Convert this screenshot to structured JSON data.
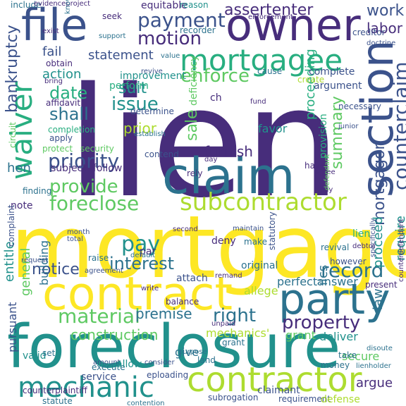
{
  "palette": {
    "dark_purple": "#472d7b",
    "indigo": "#3b528b",
    "blue": "#2c728e",
    "teal": "#21918c",
    "green_teal": "#28ae80",
    "green": "#5ec962",
    "lime": "#addc30",
    "yellow": "#fde725"
  },
  "words": [
    {
      "text": "lien",
      "color": "#472d7b"
    },
    {
      "text": "mortgage",
      "color": "#fde725"
    },
    {
      "text": "foreclosure",
      "color": "#21918c"
    },
    {
      "text": "contract",
      "color": "#fde725"
    },
    {
      "text": "claim",
      "color": "#2c728e"
    },
    {
      "text": "file",
      "color": "#3b528b"
    },
    {
      "text": "owner",
      "color": "#472d7b"
    },
    {
      "text": "mortgagee",
      "color": "#28ae80"
    },
    {
      "text": "section",
      "color": "#3b528b"
    },
    {
      "text": "party",
      "color": "#2c728e"
    },
    {
      "text": "contractor",
      "color": "#addc30"
    },
    {
      "text": "mechanic",
      "color": "#21918c"
    },
    {
      "text": "subcontractor",
      "color": "#addc30"
    },
    {
      "text": "waiver",
      "color": "#28ae80"
    },
    {
      "text": "foreclose",
      "color": "#5ec962"
    },
    {
      "text": "provide",
      "color": "#5ec962"
    },
    {
      "text": "payment",
      "color": "#3b528b"
    },
    {
      "text": "assertenter",
      "color": "#472d7b"
    },
    {
      "text": "counterclaim",
      "color": "#3b528b"
    },
    {
      "text": "record",
      "color": "#2c728e"
    },
    {
      "text": "priority",
      "color": "#3b528b"
    },
    {
      "text": "motion",
      "color": "#472d7b"
    },
    {
      "text": "enforce",
      "color": "#5ec962"
    },
    {
      "text": "bankruptcy",
      "color": "#3b528b"
    },
    {
      "text": "mortgagor",
      "color": "#3b528b"
    },
    {
      "text": "material",
      "color": "#5ec962"
    },
    {
      "text": "property",
      "color": "#472d7b"
    },
    {
      "text": "notice",
      "color": "#3b528b"
    },
    {
      "text": "interest",
      "color": "#2c728e"
    },
    {
      "text": "right",
      "color": "#2c728e"
    },
    {
      "text": "pay",
      "color": "#21918c"
    },
    {
      "text": "issue",
      "color": "#21918c"
    },
    {
      "text": "date",
      "color": "#28ae80"
    },
    {
      "text": "sale",
      "color": "#5ec962"
    },
    {
      "text": "summary",
      "color": "#5ec962"
    },
    {
      "text": "require",
      "color": "#21918c"
    },
    {
      "text": "proceed",
      "color": "#21918c"
    },
    {
      "text": "construction",
      "color": "#5ec962"
    },
    {
      "text": "premise",
      "color": "#2c728e"
    },
    {
      "text": "argue",
      "color": "#472d7b"
    },
    {
      "text": "entitle",
      "color": "#21918c"
    },
    {
      "text": "shall",
      "color": "#2c728e"
    },
    {
      "text": "suit",
      "color": "#21918c"
    },
    {
      "text": "work",
      "color": "#3b528b"
    },
    {
      "text": "labor",
      "color": "#472d7b"
    },
    {
      "text": "statement",
      "color": "#3b528b"
    },
    {
      "text": "fail",
      "color": "#3b528b"
    },
    {
      "text": "action",
      "color": "#21918c"
    },
    {
      "text": "prior",
      "color": "#addc30"
    },
    {
      "text": "furnish",
      "color": "#472d7b"
    },
    {
      "text": "note",
      "color": "#472d7b"
    },
    {
      "text": "hen",
      "color": "#2c728e"
    },
    {
      "text": "law",
      "color": "#2c728e"
    },
    {
      "text": "general",
      "color": "#5ec962"
    },
    {
      "text": "lien",
      "color": "#28ae80"
    },
    {
      "text": "proceeding",
      "color": "#28ae80"
    },
    {
      "text": "perfect",
      "color": "#2c728e"
    },
    {
      "text": "answer",
      "color": "#2c728e"
    },
    {
      "text": "original",
      "color": "#2c728e"
    },
    {
      "text": "mechanics'",
      "color": "#addc30"
    },
    {
      "text": "give",
      "color": "#2c728e"
    },
    {
      "text": "deliver",
      "color": "#21918c"
    },
    {
      "text": "grant",
      "color": "#5ec962"
    },
    {
      "text": "ilcs",
      "color": "#2c728e"
    },
    {
      "text": "secure",
      "color": "#5ec962"
    },
    {
      "text": "service",
      "color": "#3b528b"
    },
    {
      "text": "subject",
      "color": "#472d7b"
    },
    {
      "text": "follow",
      "color": "#472d7b"
    },
    {
      "text": "deny",
      "color": "#472d7b"
    },
    {
      "text": "pursuant",
      "color": "#3b528b"
    },
    {
      "text": "building",
      "color": "#2c728e"
    },
    {
      "text": "attach",
      "color": "#3b528b"
    },
    {
      "text": "valid",
      "color": "#21918c"
    },
    {
      "text": "complete",
      "color": "#3b528b"
    },
    {
      "text": "improvement",
      "color": "#21918c"
    },
    {
      "text": "perform",
      "color": "#28ae80"
    },
    {
      "text": "determine",
      "color": "#3b528b"
    },
    {
      "text": "favor",
      "color": "#21918c"
    },
    {
      "text": "deficiency",
      "color": "#5ec962"
    },
    {
      "text": "provision",
      "color": "#28ae80"
    },
    {
      "text": "argument",
      "color": "#3b528b"
    },
    {
      "text": "seek",
      "color": "#472d7b"
    },
    {
      "text": "equitable",
      "color": "#472d7b"
    },
    {
      "text": "reason",
      "color": "#21918c"
    },
    {
      "text": "include",
      "color": "#2c728e"
    },
    {
      "text": "evidenceproject",
      "color": "#472d7b"
    },
    {
      "text": "obtain",
      "color": "#472d7b"
    },
    {
      "text": "affidavit",
      "color": "#472d7b"
    },
    {
      "text": "apply",
      "color": "#3b528b"
    },
    {
      "text": "completion",
      "color": "#28ae80"
    },
    {
      "text": "circuit",
      "color": "#5ec962"
    },
    {
      "text": "rely",
      "color": "#472d7b"
    },
    {
      "text": "contend",
      "color": "#3b528b"
    },
    {
      "text": "statutory",
      "color": "#3b528b"
    },
    {
      "text": "maintain",
      "color": "#3b528b"
    },
    {
      "text": "allege",
      "color": "#addc30"
    },
    {
      "text": "par",
      "color": "#472d7b"
    },
    {
      "text": "default",
      "color": "#2c728e"
    },
    {
      "text": "however",
      "color": "#3b528b"
    },
    {
      "text": "present",
      "color": "#472d7b"
    },
    {
      "text": "disoute",
      "color": "#2c728e"
    },
    {
      "text": "recorder",
      "color": "#2c728e"
    },
    {
      "text": "creditor",
      "color": "#3b528b"
    },
    {
      "text": "doctrine",
      "color": "#3b528b"
    },
    {
      "text": "revive",
      "color": "#3b528b"
    },
    {
      "text": "support",
      "color": "#2c728e"
    },
    {
      "text": "bring",
      "color": "#472d7b"
    },
    {
      "text": "second",
      "color": "#472d7b"
    },
    {
      "text": "balance",
      "color": "#472d7b"
    },
    {
      "text": "establish",
      "color": "#2c728e"
    },
    {
      "text": "remand",
      "color": "#472d7b"
    },
    {
      "text": "execute",
      "color": "#2c728e"
    },
    {
      "text": "subrogation",
      "color": "#3b528b"
    },
    {
      "text": "claimant",
      "color": "#3b528b"
    },
    {
      "text": "requirement",
      "color": "#3b528b"
    },
    {
      "text": "defense",
      "color": "#addc30"
    },
    {
      "text": "statute",
      "color": "#2c728e"
    },
    {
      "text": "contention",
      "color": "#2c728e"
    },
    {
      "text": "counterplaintiff",
      "color": "#472d7b"
    },
    {
      "text": "money",
      "color": "#2c728e"
    },
    {
      "text": "lienholder",
      "color": "#2c728e"
    },
    {
      "text": "counterdefendant",
      "color": "#472d7b"
    },
    {
      "text": "take",
      "color": "#2c728e"
    },
    {
      "text": "amount",
      "color": "#3b528b"
    },
    {
      "text": "complaint",
      "color": "#3b528b"
    },
    {
      "text": "protect",
      "color": "#5ec962"
    },
    {
      "text": "security",
      "color": "#5ec962"
    },
    {
      "text": "raise",
      "color": "#2c728e"
    },
    {
      "text": "month",
      "color": "#3b528b"
    },
    {
      "text": "total",
      "color": "#3b528b"
    },
    {
      "text": "day",
      "color": "#472d7b"
    },
    {
      "text": "agree",
      "color": "#472d7b"
    },
    {
      "text": "have",
      "color": "#472d7b"
    },
    {
      "text": "say",
      "color": "#472d7b"
    },
    {
      "text": "necessary",
      "color": "#3b528b"
    },
    {
      "text": "junior",
      "color": "#3b528b"
    },
    {
      "text": "defendant",
      "color": "#5ec962"
    },
    {
      "text": "enforcement",
      "color": "#472d7b"
    },
    {
      "text": "value",
      "color": "#2c728e"
    },
    {
      "text": "create",
      "color": "#addc30"
    },
    {
      "text": "fund",
      "color": "#472d7b"
    },
    {
      "text": "finding",
      "color": "#2c728e"
    },
    {
      "text": "revival",
      "color": "#2c728e"
    },
    {
      "text": "debtor",
      "color": "#472d7b"
    },
    {
      "text": "grant",
      "color": "#2c728e"
    },
    {
      "text": "agreement",
      "color": "#3b528b"
    },
    {
      "text": "exist",
      "color": "#472d7b"
    },
    {
      "text": "make",
      "color": "#2c728e"
    },
    {
      "text": "unpaid",
      "color": "#472d7b"
    },
    {
      "text": "request",
      "color": "#3b528b"
    },
    {
      "text": "consider",
      "color": "#3b528b"
    },
    {
      "text": "land",
      "color": "#2c728e"
    },
    {
      "text": "write",
      "color": "#472d7b"
    },
    {
      "text": "purpose",
      "color": "#2c728e"
    },
    {
      "text": "allow",
      "color": "#21918c"
    },
    {
      "text": "set",
      "color": "#2c728e"
    },
    {
      "text": "eploading",
      "color": "#3b528b"
    },
    {
      "text": "ch",
      "color": "#472d7b"
    },
    {
      "text": "know",
      "color": "#2c728e"
    },
    {
      "text": "cause",
      "color": "#2c728e"
    },
    {
      "text": "specifically",
      "color": "#3b528b"
    }
  ]
}
